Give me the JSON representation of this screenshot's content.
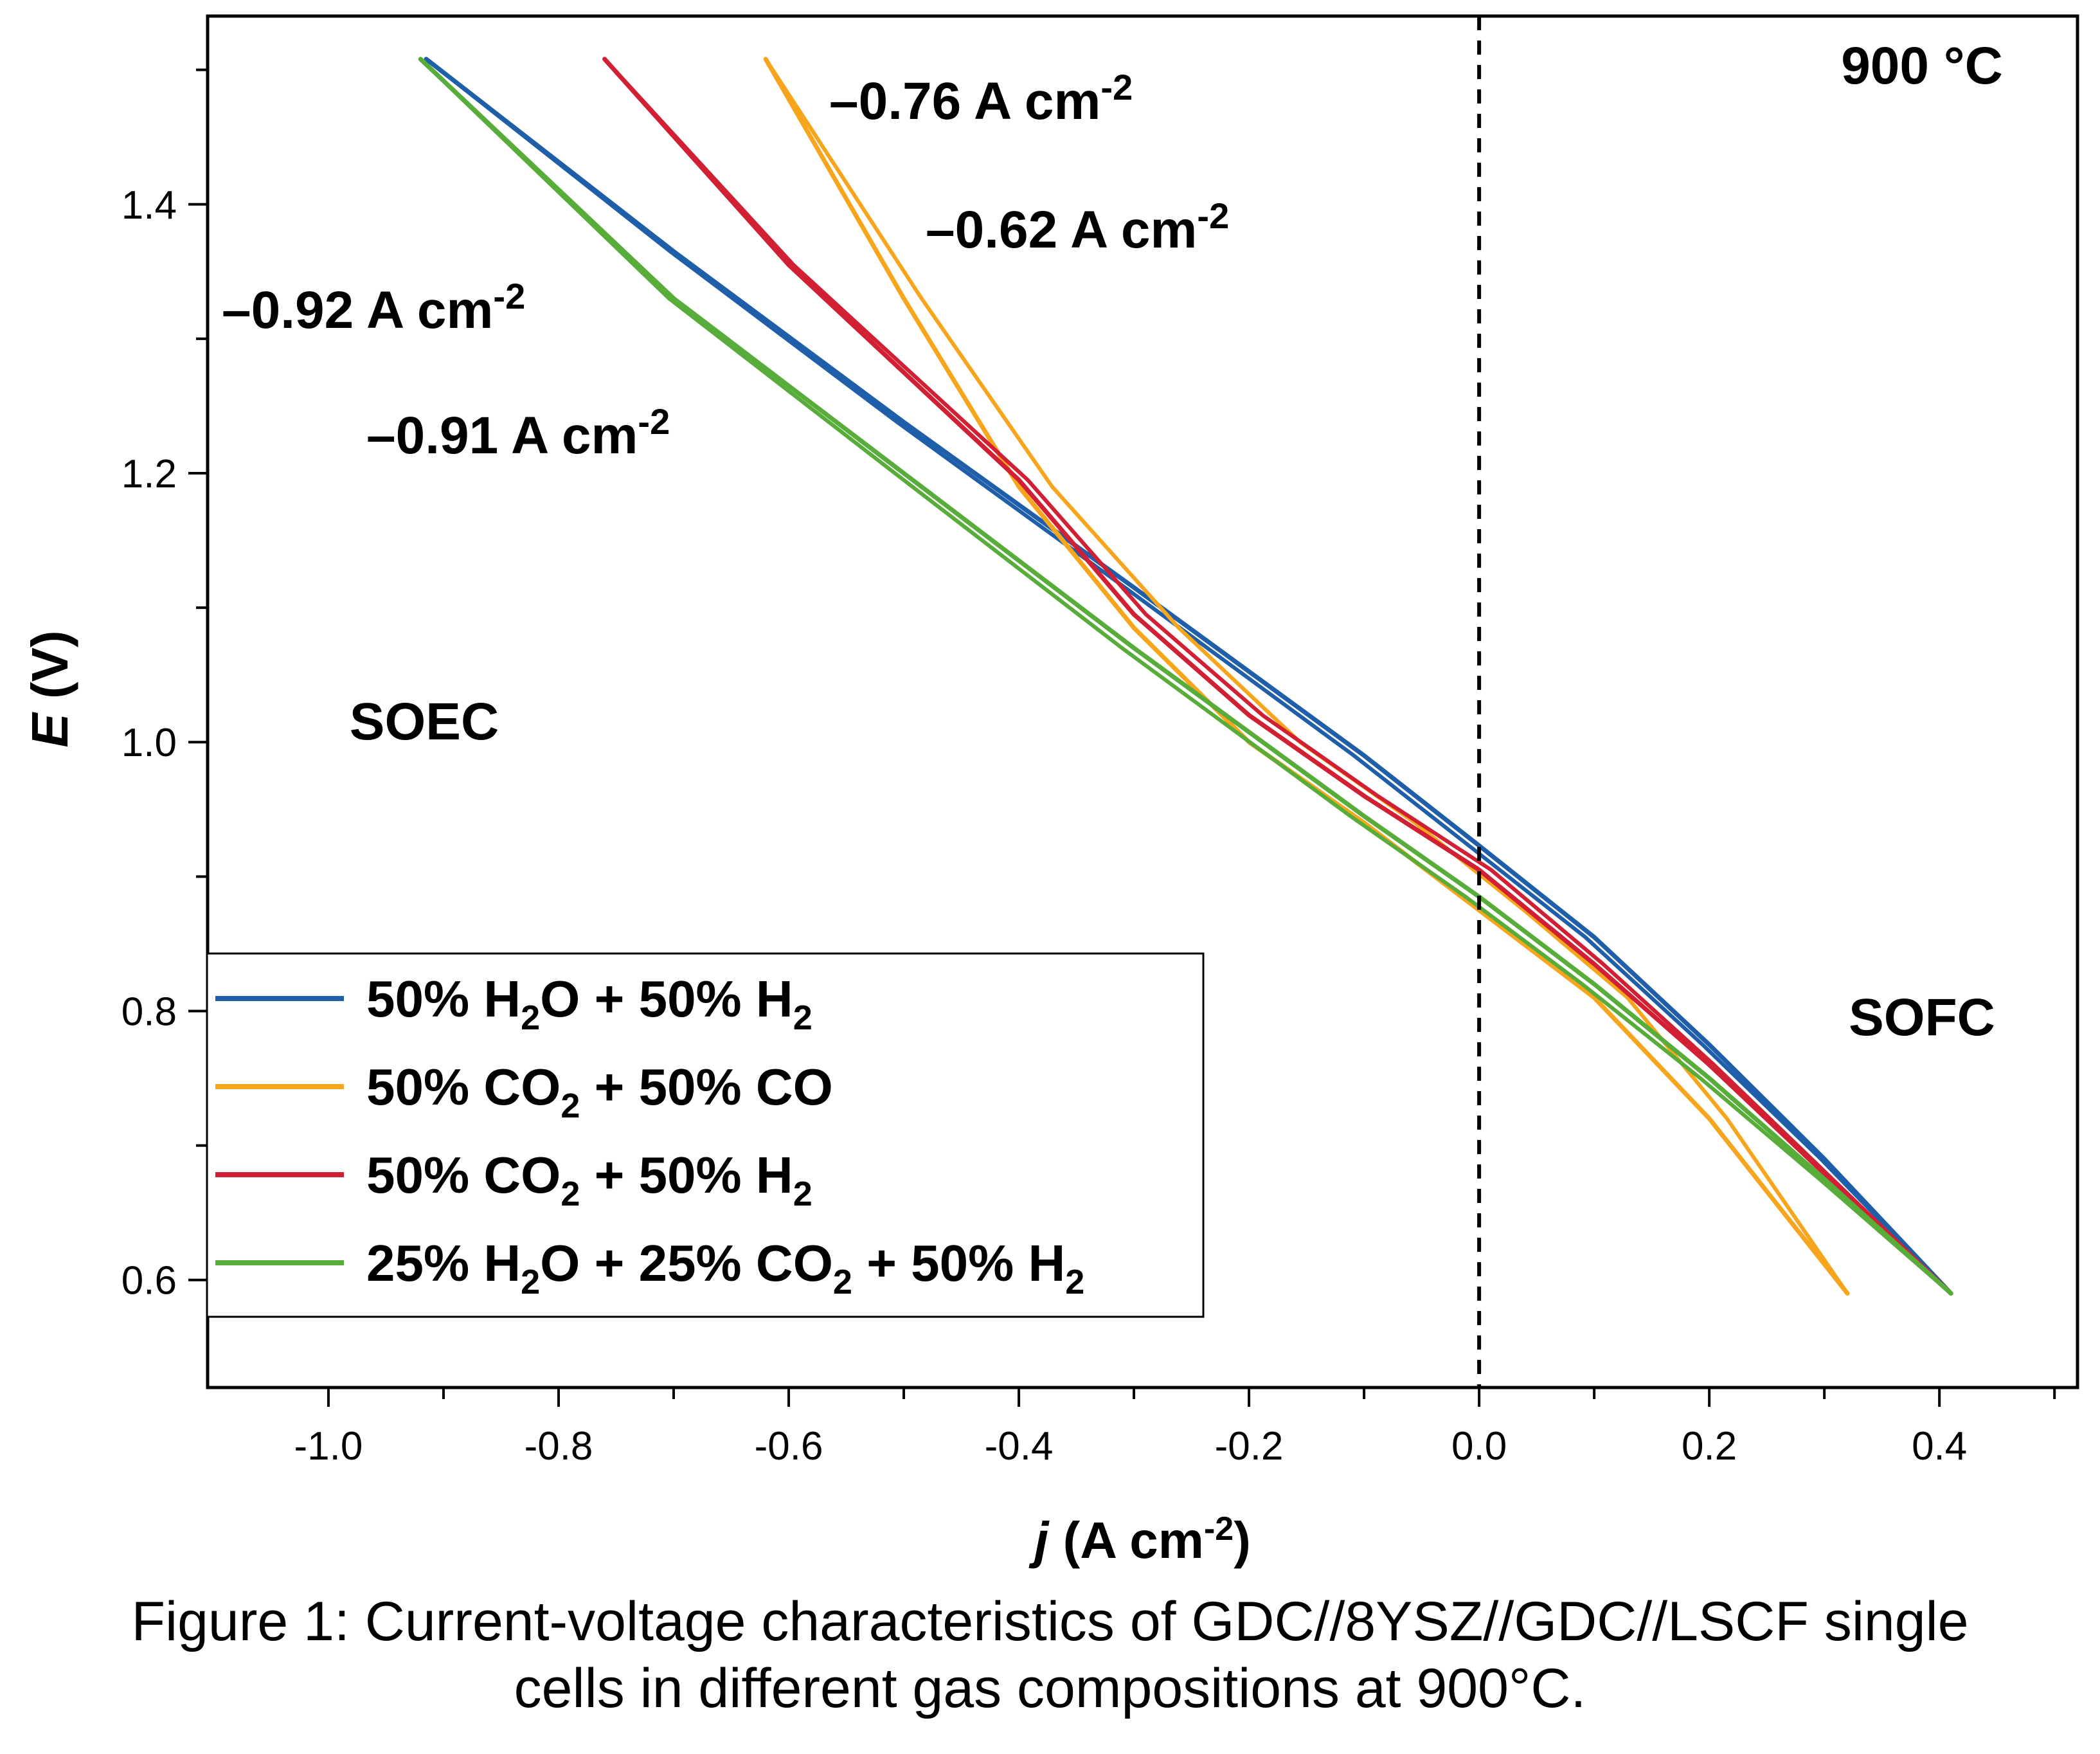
{
  "chart_data": {
    "type": "line",
    "title": "",
    "xlabel": {
      "italic": "j",
      "text": " (A cm",
      "sup": "-2",
      "close": ")"
    },
    "ylabel": {
      "italic": "E",
      "text": " (V)"
    },
    "xlim": [
      -1.105,
      0.52
    ],
    "ylim": [
      0.52,
      1.54
    ],
    "xticks": [
      -1.0,
      -0.8,
      -0.6,
      -0.4,
      -0.2,
      0.0,
      0.2,
      0.4
    ],
    "xtick_labels": [
      "-1.0",
      "-0.8",
      "-0.6",
      "-0.4",
      "-0.2",
      "0.0",
      "0.2",
      "0.4"
    ],
    "yticks": [
      0.6,
      0.8,
      1.0,
      1.2,
      1.4
    ],
    "ytick_labels": [
      "0.6",
      "0.8",
      "1.0",
      "1.2",
      "1.4"
    ],
    "grid": false,
    "legend_position": "bottom-left",
    "reference_line": {
      "x": 0.0,
      "style": "dashed",
      "color": "#000000"
    },
    "series": [
      {
        "name": "50% H2O + 50% H2",
        "color": "#1f5ea8",
        "legend": [
          {
            "t": "50% H"
          },
          {
            "t": "2",
            "sub": true
          },
          {
            "t": "O + 50% H"
          },
          {
            "t": "2",
            "sub": true
          }
        ],
        "x": [
          -0.915,
          -0.7,
          -0.5,
          -0.3,
          -0.1,
          0.0,
          0.1,
          0.2,
          0.3,
          0.41
        ],
        "y": [
          1.508,
          1.365,
          1.238,
          1.115,
          0.99,
          0.923,
          0.855,
          0.775,
          0.69,
          0.59
        ],
        "return_offset": -0.009
      },
      {
        "name": "50% CO2 + 50% CO",
        "color": "#f7a51c",
        "legend": [
          {
            "t": "50% CO"
          },
          {
            "t": "2",
            "sub": true
          },
          {
            "t": " + 50% CO"
          }
        ],
        "x": [
          -0.62,
          -0.5,
          -0.4,
          -0.3,
          -0.2,
          -0.1,
          0.0,
          0.1,
          0.2,
          0.32
        ],
        "y": [
          1.508,
          1.33,
          1.19,
          1.085,
          1.0,
          0.94,
          0.875,
          0.81,
          0.72,
          0.59
        ],
        "return_offset": 0.045
      },
      {
        "name": "50% CO2 + 50% H2",
        "color": "#d11f34",
        "legend": [
          {
            "t": "50% CO"
          },
          {
            "t": "2",
            "sub": true
          },
          {
            "t": " + 50% H"
          },
          {
            "t": "2",
            "sub": true
          }
        ],
        "x": [
          -0.76,
          -0.6,
          -0.4,
          -0.3,
          -0.2,
          -0.1,
          0.0,
          0.1,
          0.2,
          0.41
        ],
        "y": [
          1.508,
          1.355,
          1.195,
          1.095,
          1.02,
          0.96,
          0.905,
          0.835,
          0.76,
          0.59
        ],
        "return_offset": 0.012
      },
      {
        "name": "25% H2O + 25% CO2 + 50% H2",
        "color": "#58ad3a",
        "legend": [
          {
            "t": "25% H"
          },
          {
            "t": "2",
            "sub": true
          },
          {
            "t": "O + 25% CO"
          },
          {
            "t": "2",
            "sub": true
          },
          {
            "t": " + 50% H"
          },
          {
            "t": "2",
            "sub": true
          }
        ],
        "x": [
          -0.92,
          -0.7,
          -0.5,
          -0.3,
          -0.1,
          0.0,
          0.1,
          0.2,
          0.3,
          0.41
        ],
        "y": [
          1.508,
          1.33,
          1.2,
          1.07,
          0.945,
          0.885,
          0.82,
          0.75,
          0.675,
          0.59
        ],
        "return_offset": -0.012
      }
    ],
    "annotations": [
      {
        "text": "–0.76 A cm",
        "sup": "-2",
        "color": "#d11f34"
      },
      {
        "text": "–0.62 A cm",
        "sup": "-2",
        "color": "#f7a51c"
      },
      {
        "text": "–0.92 A cm",
        "sup": "-2",
        "color": "#58ad3a"
      },
      {
        "text": "–0.91 A cm",
        "sup": "-2",
        "color": "#3a1aa8"
      },
      {
        "text": "900 °C",
        "color": "#000000"
      },
      {
        "text": "SOEC",
        "color": "#000000"
      },
      {
        "text": "SOFC",
        "color": "#000000"
      }
    ]
  },
  "caption": {
    "line1": "Figure 1: Current-voltage characteristics of GDC//8YSZ//GDC//LSCF single",
    "line2": "cells in different gas compositions at 900°C."
  }
}
